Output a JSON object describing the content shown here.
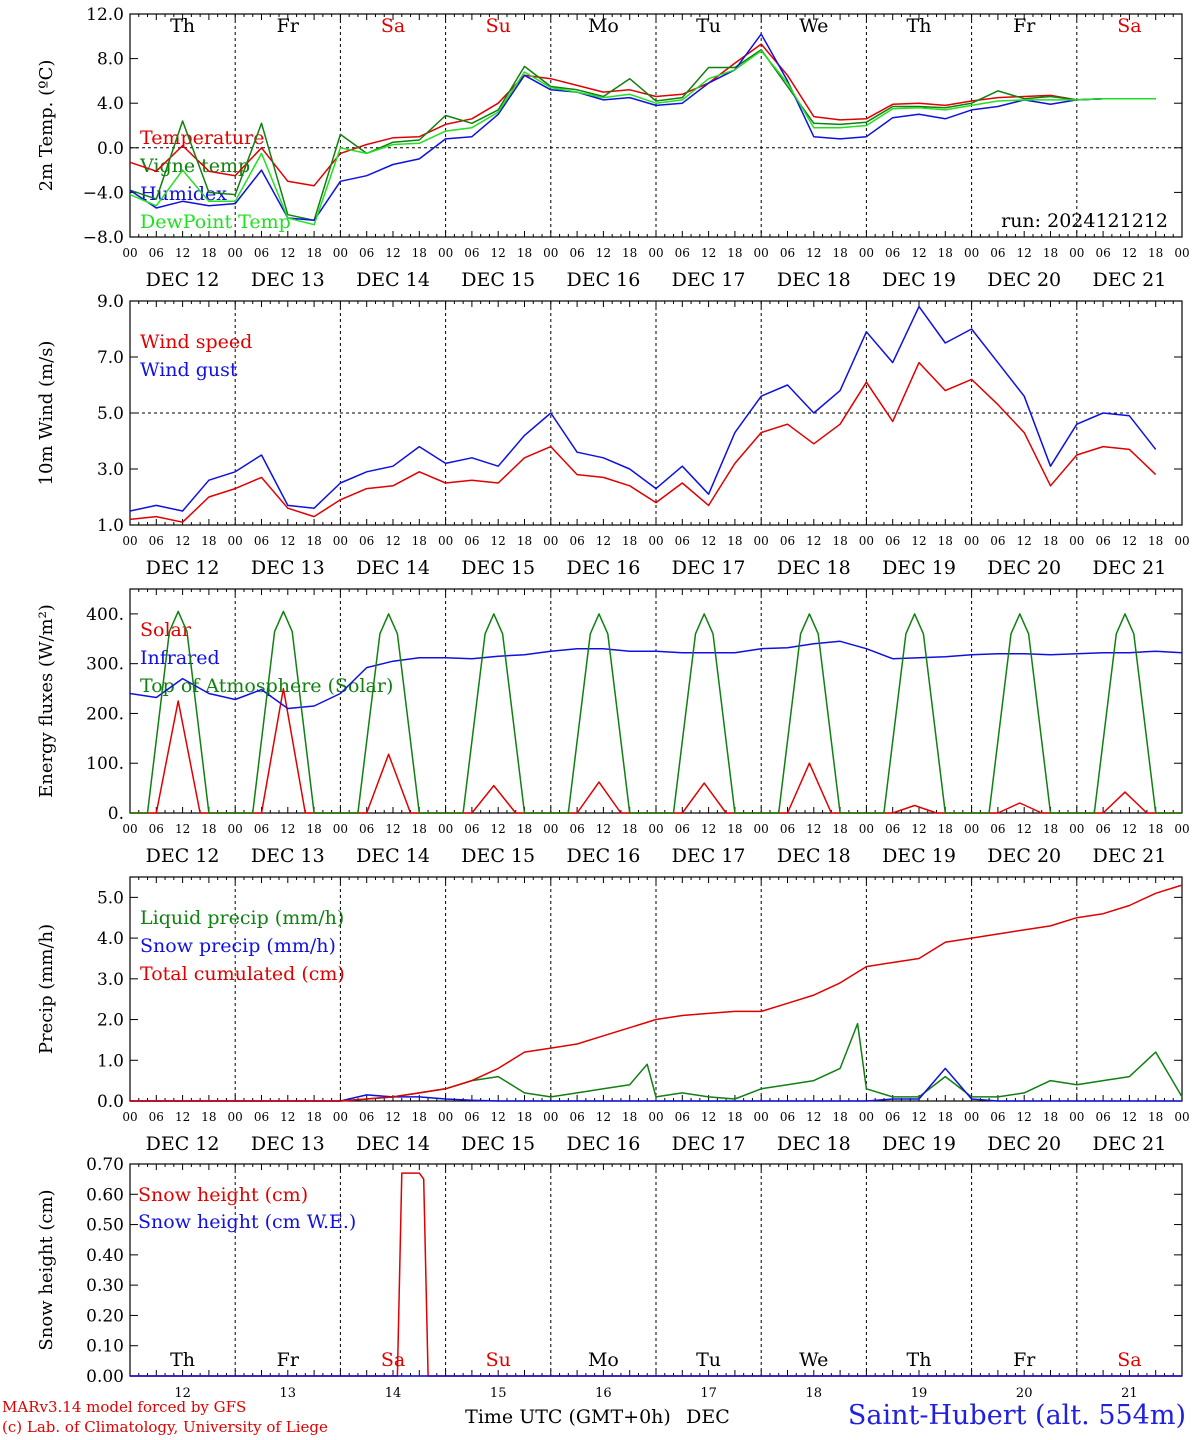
{
  "run_label": "run: 2024121212",
  "footer": {
    "credit_line1": "MARv3.14 model forced by GFS",
    "credit_line2": "(c) Lab. of Climatology, University of Liege",
    "x_title": "Time UTC (GMT+0h)",
    "month": "DEC",
    "station": "Saint-Hubert (alt. 554m)"
  },
  "axis": {
    "hour_ticks": [
      "00",
      "06",
      "12",
      "18"
    ],
    "end_tick": "00",
    "day_dates": [
      "DEC 12",
      "DEC 13",
      "DEC 14",
      "DEC 15",
      "DEC 16",
      "DEC 17",
      "DEC 18",
      "DEC 19",
      "DEC 20",
      "DEC 21"
    ],
    "day_numbers": [
      "12",
      "13",
      "14",
      "15",
      "16",
      "17",
      "18",
      "19",
      "20",
      "21"
    ],
    "weekdays": [
      {
        "label": "Th",
        "color": "#000000"
      },
      {
        "label": "Fr",
        "color": "#000000"
      },
      {
        "label": "Sa",
        "color": "#e00000"
      },
      {
        "label": "Su",
        "color": "#e00000"
      },
      {
        "label": "Mo",
        "color": "#000000"
      },
      {
        "label": "Tu",
        "color": "#000000"
      },
      {
        "label": "We",
        "color": "#000000"
      },
      {
        "label": "Th",
        "color": "#000000"
      },
      {
        "label": "Fr",
        "color": "#000000"
      },
      {
        "label": "Sa",
        "color": "#e00000"
      }
    ]
  },
  "colors": {
    "red": "#e00000",
    "blue": "#1010e0",
    "dark_green": "#108010",
    "light_green": "#20e020"
  },
  "chart_data": [
    {
      "type": "line",
      "ylabel": "2m Temp. (ºC)",
      "ylim": [
        -8,
        12
      ],
      "yticks": [
        "12.0",
        "8.0",
        "4.0",
        "0.0",
        "−4.0",
        "−8.0"
      ],
      "ytick_values": [
        12,
        8,
        4,
        0,
        -4,
        -8
      ],
      "ref_line": 0,
      "x_hours": [
        0,
        6,
        12,
        18,
        24,
        30,
        36,
        42,
        48,
        54,
        60,
        66,
        72,
        78,
        84,
        90,
        96,
        102,
        108,
        114,
        120,
        126,
        132,
        138,
        144,
        150,
        156,
        162,
        168,
        174,
        180,
        186,
        192,
        198,
        204,
        210,
        216,
        222,
        228,
        234
      ],
      "series": [
        {
          "name": "Temperature",
          "color": "#e00000",
          "values": [
            -1.3,
            -2.1,
            0.2,
            -2.1,
            -2.5,
            0.0,
            -3.0,
            -3.4,
            -0.5,
            0.3,
            0.9,
            1.0,
            2.1,
            2.6,
            4.0,
            6.5,
            6.2,
            5.6,
            5.0,
            5.2,
            4.6,
            4.8,
            5.8,
            7.6,
            9.3,
            6.5,
            2.8,
            2.5,
            2.6,
            3.9,
            4.0,
            3.8,
            4.2,
            4.5,
            4.6,
            4.7,
            4.3,
            4.4,
            4.4,
            4.4
          ]
        },
        {
          "name": "Vigne temp",
          "color": "#108010",
          "values": [
            -3.8,
            -4.6,
            2.4,
            -4.0,
            -4.2,
            2.2,
            -6.0,
            -6.5,
            1.2,
            -0.5,
            0.5,
            0.7,
            2.9,
            2.2,
            3.4,
            7.3,
            5.5,
            5.2,
            4.6,
            6.2,
            4.2,
            4.5,
            7.2,
            7.2,
            8.8,
            5.5,
            2.2,
            2.1,
            2.3,
            3.7,
            3.7,
            3.6,
            4.0,
            5.1,
            4.4,
            4.6,
            4.3,
            4.4,
            4.4,
            4.4
          ]
        },
        {
          "name": "Humidex",
          "color": "#1010e0",
          "values": [
            -3.8,
            -5.4,
            -4.8,
            -5.2,
            -5.0,
            -2.0,
            -6.3,
            -6.5,
            -3.0,
            -2.5,
            -1.5,
            -1.0,
            0.8,
            1.0,
            3.0,
            6.5,
            5.2,
            5.0,
            4.3,
            4.5,
            3.8,
            4.0,
            5.8,
            7.0,
            10.2,
            6.0,
            1.0,
            0.8,
            1.0,
            2.7,
            3.0,
            2.6,
            3.4,
            3.7,
            4.3,
            3.9,
            4.3,
            4.4,
            4.4,
            4.4
          ]
        },
        {
          "name": "DewPoint Temp",
          "color": "#20e020",
          "values": [
            -4.2,
            -5.2,
            -2.0,
            -4.8,
            -4.8,
            -0.5,
            -6.3,
            -6.9,
            0.0,
            -0.5,
            0.3,
            0.4,
            1.5,
            1.8,
            3.2,
            6.8,
            5.4,
            5.0,
            4.5,
            4.8,
            4.0,
            4.3,
            6.2,
            7.0,
            8.7,
            5.8,
            1.8,
            1.8,
            2.0,
            3.5,
            3.6,
            3.4,
            3.8,
            4.2,
            4.3,
            4.3,
            4.3,
            4.4,
            4.4,
            4.4
          ]
        }
      ]
    },
    {
      "type": "line",
      "ylabel": "10m Wind (m/s)",
      "ylim": [
        1,
        9
      ],
      "yticks": [
        "9.0",
        "7.0",
        "5.0",
        "3.0",
        "1.0"
      ],
      "ytick_values": [
        9,
        7,
        5,
        3,
        1
      ],
      "ref_line": 5,
      "x_hours": [
        0,
        6,
        12,
        18,
        24,
        30,
        36,
        42,
        48,
        54,
        60,
        66,
        72,
        78,
        84,
        90,
        96,
        102,
        108,
        114,
        120,
        126,
        132,
        138,
        144,
        150,
        156,
        162,
        168,
        174,
        180,
        186,
        192,
        198,
        204,
        210,
        216,
        222,
        228,
        234
      ],
      "series": [
        {
          "name": "Wind speed",
          "color": "#e00000",
          "values": [
            1.2,
            1.3,
            1.1,
            2.0,
            2.3,
            2.7,
            1.6,
            1.3,
            1.9,
            2.3,
            2.4,
            2.9,
            2.5,
            2.6,
            2.5,
            3.4,
            3.8,
            2.8,
            2.7,
            2.4,
            1.8,
            2.5,
            1.7,
            3.2,
            4.3,
            4.6,
            3.9,
            4.6,
            6.1,
            4.7,
            6.8,
            5.8,
            6.2,
            5.3,
            4.3,
            2.4,
            3.5,
            3.8,
            3.7,
            2.8
          ]
        },
        {
          "name": "Wind gust",
          "color": "#1010e0",
          "values": [
            1.5,
            1.7,
            1.5,
            2.6,
            2.9,
            3.5,
            1.7,
            1.6,
            2.5,
            2.9,
            3.1,
            3.8,
            3.2,
            3.4,
            3.1,
            4.2,
            5.0,
            3.6,
            3.4,
            3.0,
            2.3,
            3.1,
            2.1,
            4.3,
            5.6,
            6.0,
            5.0,
            5.8,
            7.9,
            6.8,
            8.8,
            7.5,
            8.0,
            6.8,
            5.6,
            3.1,
            4.6,
            5.0,
            4.9,
            3.7
          ]
        }
      ]
    },
    {
      "type": "line",
      "ylabel": "Energy fluxes (W/m²)",
      "ylim": [
        0,
        450
      ],
      "yticks": [
        "400.",
        "300.",
        "200.",
        "100.",
        "0."
      ],
      "ytick_values": [
        400,
        300,
        200,
        100,
        0
      ],
      "ref_line": null,
      "daily_peaks": {
        "solar_peak_hour_offset": 11,
        "solar": [
          225,
          250,
          118,
          55,
          62,
          60,
          100,
          15,
          20,
          42
        ],
        "toa_solar": [
          405,
          405,
          400,
          400,
          400,
          400,
          400,
          400,
          400,
          400
        ]
      },
      "series": [
        {
          "name": "Solar",
          "color": "#e00000",
          "values": []
        },
        {
          "name": "Infrared",
          "color": "#1010e0",
          "x_hours": [
            0,
            6,
            12,
            18,
            24,
            30,
            36,
            42,
            48,
            54,
            60,
            66,
            72,
            78,
            84,
            90,
            96,
            102,
            108,
            114,
            120,
            126,
            132,
            138,
            144,
            150,
            156,
            162,
            168,
            174,
            180,
            186,
            192,
            198,
            204,
            210,
            216,
            222,
            228,
            234,
            240
          ],
          "values": [
            240,
            232,
            270,
            240,
            228,
            248,
            210,
            215,
            240,
            292,
            305,
            312,
            312,
            310,
            315,
            318,
            325,
            330,
            330,
            325,
            325,
            322,
            322,
            322,
            330,
            332,
            340,
            345,
            330,
            310,
            312,
            314,
            318,
            320,
            320,
            318,
            320,
            322,
            322,
            325,
            322
          ]
        },
        {
          "name": "Top of Atmosphere (Solar)",
          "color": "#108010",
          "values": []
        }
      ]
    },
    {
      "type": "line",
      "ylabel": "Precip (mm/h)",
      "ylim": [
        0,
        5.5
      ],
      "yticks": [
        "5.0",
        "4.0",
        "3.0",
        "2.0",
        "1.0",
        "0.0"
      ],
      "ytick_values": [
        5,
        4,
        3,
        2,
        1,
        0
      ],
      "ref_line": null,
      "series": [
        {
          "name": "Liquid precip (mm/h)",
          "color": "#108010",
          "x_hours": [
            0,
            48,
            54,
            60,
            66,
            72,
            78,
            84,
            90,
            96,
            102,
            108,
            114,
            118,
            120,
            126,
            132,
            138,
            144,
            150,
            156,
            162,
            166,
            168,
            174,
            180,
            186,
            192,
            198,
            204,
            210,
            216,
            222,
            228,
            234,
            240
          ],
          "values": [
            0,
            0,
            0.05,
            0.1,
            0.2,
            0.3,
            0.5,
            0.6,
            0.2,
            0.1,
            0.2,
            0.3,
            0.4,
            0.9,
            0.1,
            0.2,
            0.1,
            0.05,
            0.3,
            0.4,
            0.5,
            0.8,
            1.9,
            0.3,
            0.1,
            0.1,
            0.6,
            0.1,
            0.1,
            0.2,
            0.5,
            0.4,
            0.5,
            0.6,
            1.2,
            0.1
          ]
        },
        {
          "name": "Snow precip (mm/h)",
          "color": "#1010e0",
          "x_hours": [
            0,
            48,
            54,
            60,
            66,
            72,
            78,
            84,
            90,
            96,
            168,
            174,
            180,
            186,
            192,
            198,
            240
          ],
          "values": [
            0,
            0,
            0.15,
            0.1,
            0.1,
            0.05,
            0.02,
            0,
            0,
            0,
            0,
            0.05,
            0.05,
            0.8,
            0.05,
            0,
            0
          ]
        },
        {
          "name": "Total cumulated (cm)",
          "color": "#e00000",
          "x_hours": [
            0,
            48,
            54,
            60,
            66,
            72,
            78,
            84,
            90,
            96,
            102,
            108,
            114,
            120,
            126,
            132,
            138,
            144,
            150,
            156,
            162,
            168,
            174,
            180,
            186,
            192,
            198,
            204,
            210,
            216,
            222,
            228,
            234,
            240
          ],
          "values": [
            0,
            0,
            0.05,
            0.1,
            0.2,
            0.3,
            0.5,
            0.8,
            1.2,
            1.3,
            1.4,
            1.6,
            1.8,
            2.0,
            2.1,
            2.15,
            2.2,
            2.2,
            2.4,
            2.6,
            2.9,
            3.3,
            3.4,
            3.5,
            3.9,
            4.0,
            4.1,
            4.2,
            4.3,
            4.5,
            4.6,
            4.8,
            5.1,
            5.3
          ]
        }
      ]
    },
    {
      "type": "line",
      "ylabel": "Snow height (cm)",
      "ylim": [
        0,
        0.7
      ],
      "yticks": [
        "0.70",
        "0.60",
        "0.50",
        "0.40",
        "0.30",
        "0.20",
        "0.10",
        "0.00"
      ],
      "ytick_values": [
        0.7,
        0.6,
        0.5,
        0.4,
        0.3,
        0.2,
        0.1,
        0
      ],
      "ref_line": null,
      "series": [
        {
          "name": "Snow height (cm)",
          "color": "#e00000",
          "x_hours": [
            0,
            61,
            62,
            66,
            67,
            68,
            240
          ],
          "values": [
            0,
            0,
            0.67,
            0.67,
            0.65,
            0,
            0
          ]
        },
        {
          "name": "Snow height (cm W.E.)",
          "color": "#1010e0",
          "x_hours": [
            0,
            240
          ],
          "values": [
            0,
            0
          ]
        }
      ]
    }
  ]
}
